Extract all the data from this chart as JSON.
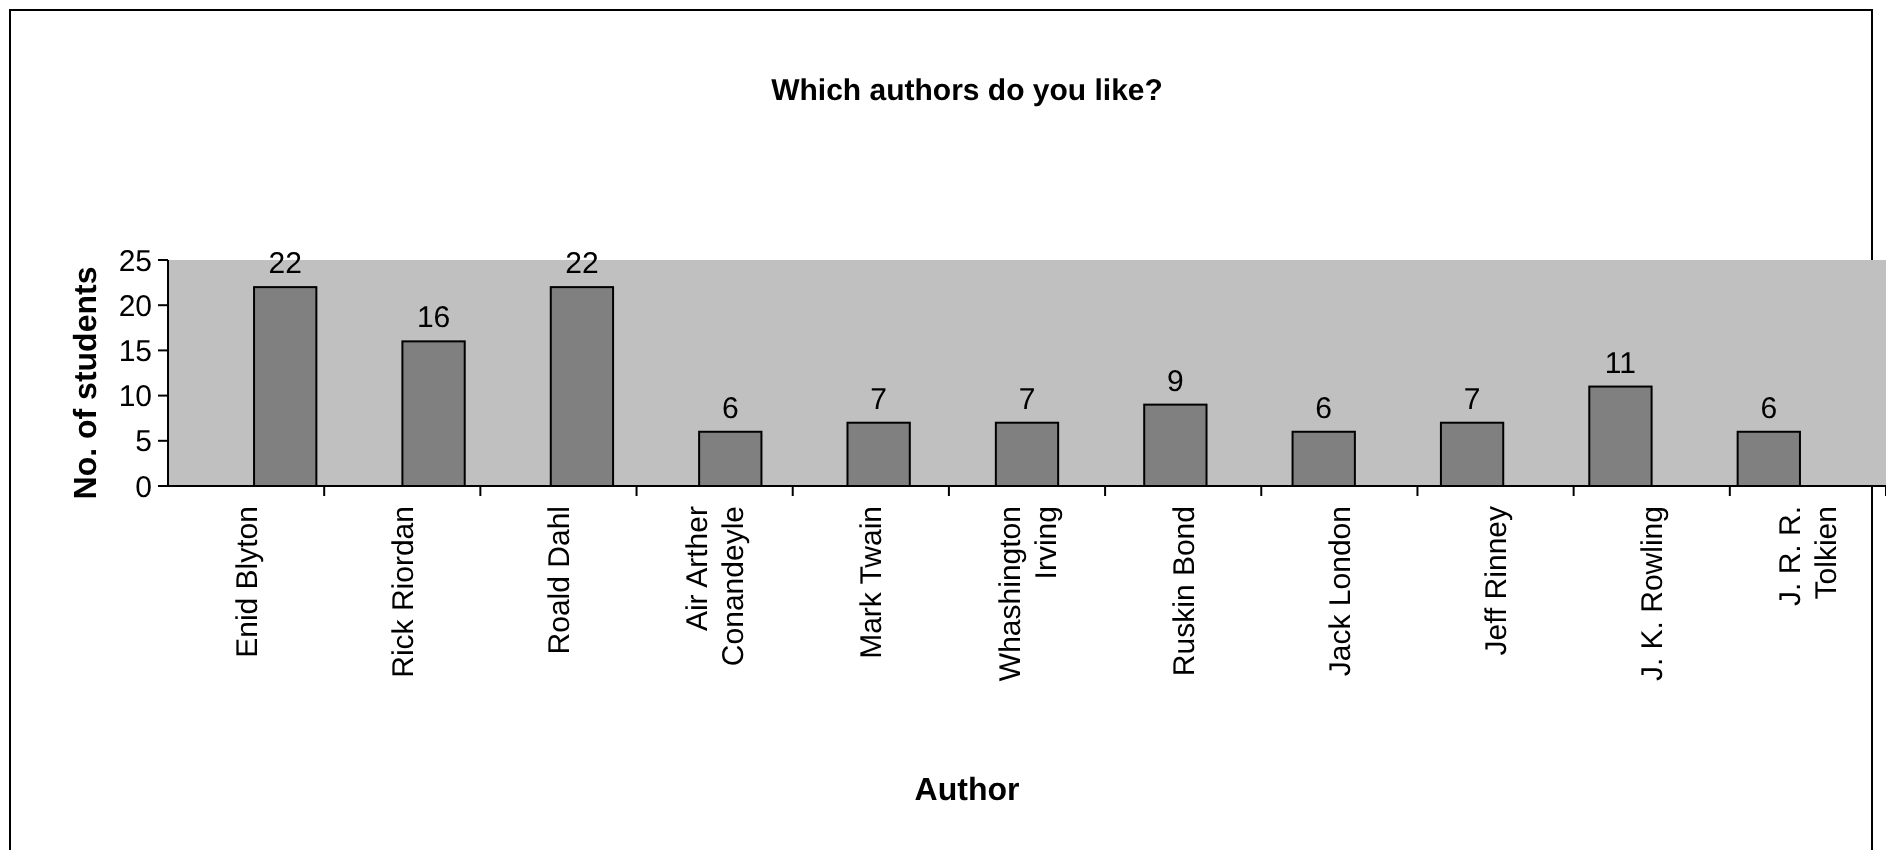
{
  "chart_data": {
    "type": "bar",
    "title": "Which authors do you like?",
    "xlabel": "Author",
    "ylabel": "No. of students",
    "categories": [
      "Enid Blyton",
      "Rick Riordan",
      "Roald Dahl",
      "Air Arther Conandeyle",
      "Mark Twain",
      "Whashington Irving",
      "Ruskin Bond",
      "Jack London",
      "Jeff Rinney",
      "J. K. Rowling",
      "J. R. R. Tolkien"
    ],
    "values": [
      22,
      16,
      22,
      6,
      7,
      7,
      9,
      6,
      7,
      11,
      6
    ],
    "color": "#808080",
    "data_labels": true,
    "ylim": [
      0,
      25
    ],
    "yticks": [
      0,
      5,
      10,
      15,
      20,
      25
    ],
    "grid": false
  }
}
